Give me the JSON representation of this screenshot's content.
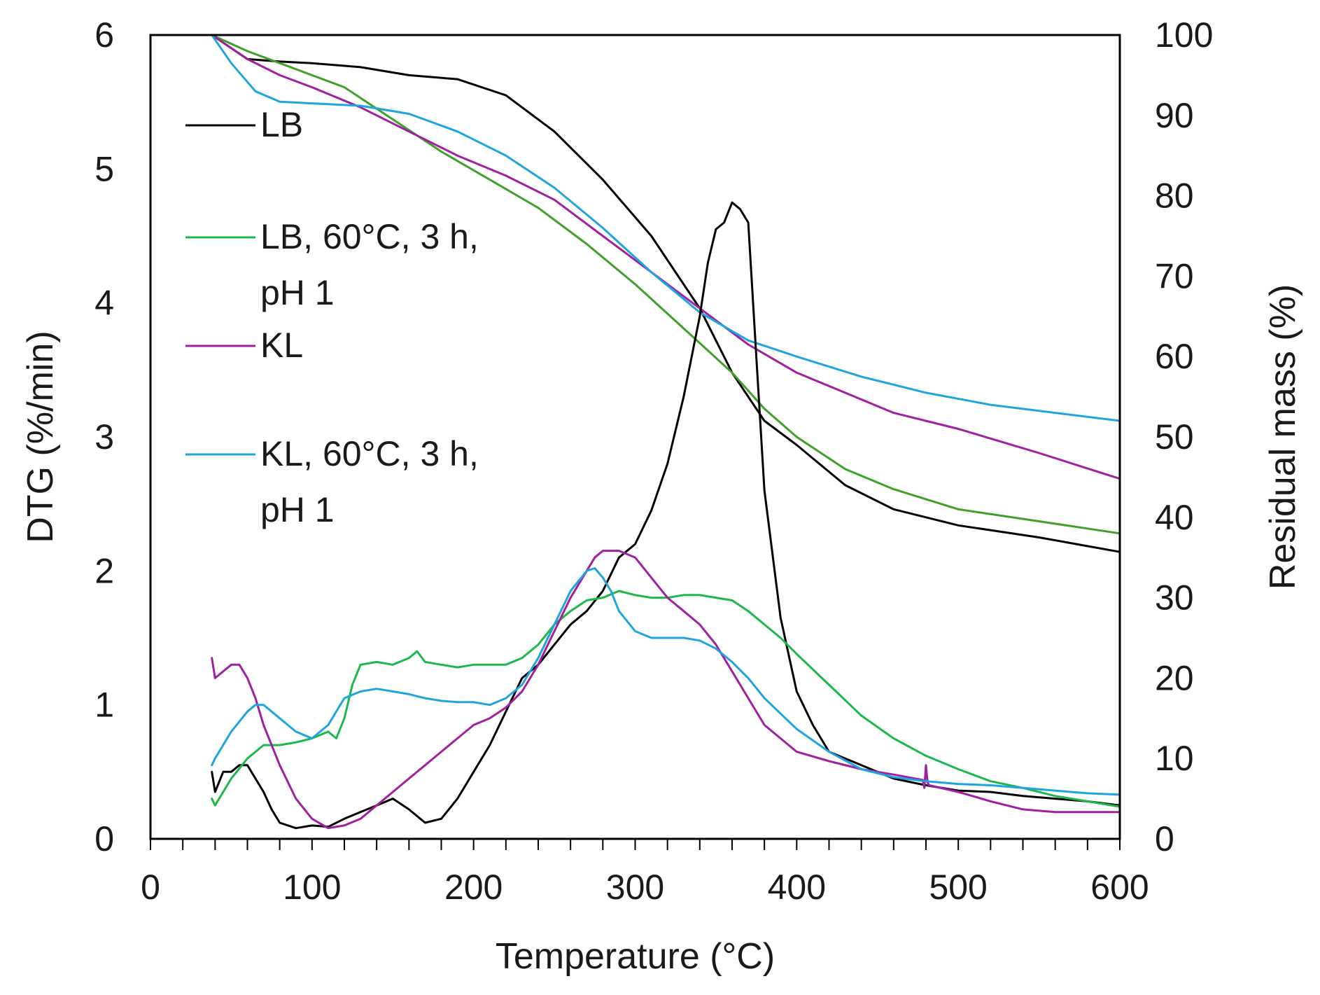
{
  "chart_data": {
    "type": "line",
    "xlabel": "Temperature (°C)",
    "ylabel_left": "DTG (%/min)",
    "ylabel_right": "Residual mass (%)",
    "xlim": [
      0,
      600
    ],
    "ylim_left": [
      0,
      6
    ],
    "ylim_right": [
      0,
      100
    ],
    "x_ticks": [
      "0",
      "100",
      "200",
      "300",
      "400",
      "500",
      "600"
    ],
    "y_left_ticks": [
      "0",
      "1",
      "2",
      "3",
      "4",
      "5",
      "6"
    ],
    "y_right_ticks": [
      "0",
      "10",
      "20",
      "30",
      "40",
      "50",
      "60",
      "70",
      "80",
      "90",
      "100"
    ],
    "grid": false,
    "legend_position": "upper-left inside",
    "legend": [
      {
        "series": "LB",
        "lines": [
          "LB"
        ],
        "color": "#000000"
      },
      {
        "series": "LB, 60°C, 3 h, pH 1",
        "lines": [
          "LB, 60°C, 3 h,",
          "pH 1"
        ],
        "color": "#1db84a"
      },
      {
        "series": "KL",
        "lines": [
          "KL"
        ],
        "color": "#a020a0"
      },
      {
        "series": "KL, 60°C, 3 h, pH 1",
        "lines": [
          "KL, 60°C, 3 h,",
          "pH 1"
        ],
        "color": "#1ea5e0"
      }
    ],
    "series": [
      {
        "name": "LB",
        "axis": "right",
        "kind": "residual mass",
        "color": "#000000",
        "x": [
          38,
          60,
          80,
          100,
          130,
          160,
          190,
          220,
          250,
          280,
          310,
          340,
          360,
          380,
          400,
          430,
          460,
          500,
          550,
          600
        ],
        "y": [
          100,
          97,
          96.7,
          96.5,
          96,
          95,
          94.5,
          92.5,
          88,
          82,
          75,
          66,
          58,
          52,
          49,
          44,
          41,
          39,
          37.5,
          35.7
        ]
      },
      {
        "name": "LB, 60°C, 3 h, pH 1",
        "axis": "right",
        "kind": "residual mass",
        "color": "#3fa02a",
        "x": [
          38,
          60,
          80,
          100,
          120,
          150,
          180,
          210,
          240,
          270,
          300,
          330,
          360,
          380,
          400,
          430,
          460,
          500,
          550,
          600
        ],
        "y": [
          100,
          98,
          96.5,
          95,
          93.5,
          89.5,
          85.5,
          82,
          78.5,
          74,
          69,
          63.5,
          58,
          53.5,
          50,
          46,
          43.5,
          41,
          39.5,
          38
        ]
      },
      {
        "name": "KL",
        "axis": "right",
        "kind": "residual mass",
        "color": "#a020a0",
        "x": [
          38,
          60,
          80,
          100,
          130,
          160,
          190,
          220,
          250,
          280,
          310,
          340,
          370,
          400,
          430,
          460,
          500,
          550,
          600
        ],
        "y": [
          100,
          97,
          95,
          93.5,
          91,
          88,
          85,
          82.5,
          79.5,
          75,
          70.5,
          66,
          61.5,
          58,
          55.5,
          53,
          51,
          48,
          44.8
        ]
      },
      {
        "name": "KL, 60°C, 3 h, pH 1",
        "axis": "right",
        "kind": "residual mass",
        "color": "#1ea5e0",
        "x": [
          38,
          50,
          65,
          80,
          100,
          130,
          160,
          190,
          220,
          250,
          280,
          310,
          340,
          370,
          400,
          440,
          480,
          520,
          560,
          600
        ],
        "y": [
          100,
          96.5,
          93,
          91.7,
          91.5,
          91.2,
          90.2,
          88,
          85,
          81,
          76,
          70.5,
          65.5,
          62,
          60,
          57.5,
          55.5,
          54,
          53,
          52
        ]
      },
      {
        "name": "LB",
        "axis": "left",
        "kind": "DTG",
        "color": "#000000",
        "x": [
          38,
          40,
          45,
          50,
          55,
          60,
          65,
          70,
          75,
          80,
          90,
          100,
          110,
          120,
          130,
          140,
          150,
          160,
          170,
          180,
          190,
          200,
          210,
          220,
          230,
          240,
          250,
          260,
          270,
          280,
          290,
          300,
          310,
          320,
          330,
          340,
          345,
          350,
          355,
          360,
          365,
          370,
          375,
          380,
          390,
          400,
          410,
          420,
          440,
          460,
          480,
          500,
          520,
          540,
          560,
          580,
          600
        ],
        "y": [
          0.5,
          0.35,
          0.5,
          0.5,
          0.55,
          0.55,
          0.45,
          0.35,
          0.22,
          0.12,
          0.08,
          0.1,
          0.09,
          0.15,
          0.2,
          0.25,
          0.3,
          0.22,
          0.12,
          0.15,
          0.3,
          0.5,
          0.7,
          0.95,
          1.2,
          1.3,
          1.45,
          1.6,
          1.7,
          1.85,
          2.1,
          2.2,
          2.45,
          2.8,
          3.3,
          3.9,
          4.3,
          4.55,
          4.6,
          4.75,
          4.7,
          4.6,
          3.6,
          2.6,
          1.65,
          1.1,
          0.85,
          0.65,
          0.55,
          0.45,
          0.4,
          0.36,
          0.35,
          0.32,
          0.3,
          0.28,
          0.25
        ]
      },
      {
        "name": "LB, 60°C, 3 h, pH 1",
        "axis": "left",
        "kind": "DTG",
        "color": "#1db84a",
        "x": [
          38,
          40,
          50,
          60,
          70,
          80,
          90,
          100,
          110,
          115,
          120,
          125,
          130,
          140,
          150,
          160,
          165,
          170,
          180,
          190,
          200,
          210,
          220,
          230,
          240,
          250,
          260,
          270,
          280,
          290,
          300,
          310,
          320,
          330,
          340,
          350,
          360,
          370,
          380,
          390,
          400,
          420,
          440,
          460,
          480,
          500,
          520,
          540,
          560,
          580,
          600
        ],
        "y": [
          0.3,
          0.25,
          0.45,
          0.6,
          0.7,
          0.7,
          0.72,
          0.75,
          0.8,
          0.75,
          0.9,
          1.15,
          1.3,
          1.32,
          1.3,
          1.35,
          1.4,
          1.32,
          1.3,
          1.28,
          1.3,
          1.3,
          1.3,
          1.35,
          1.45,
          1.6,
          1.7,
          1.78,
          1.8,
          1.85,
          1.82,
          1.8,
          1.8,
          1.82,
          1.82,
          1.8,
          1.78,
          1.7,
          1.6,
          1.5,
          1.38,
          1.15,
          0.92,
          0.75,
          0.62,
          0.52,
          0.43,
          0.38,
          0.32,
          0.28,
          0.24
        ]
      },
      {
        "name": "KL",
        "axis": "left",
        "kind": "DTG",
        "color": "#a020a0",
        "x": [
          38,
          40,
          45,
          50,
          55,
          60,
          65,
          70,
          80,
          90,
          100,
          110,
          120,
          130,
          140,
          150,
          160,
          170,
          180,
          190,
          200,
          210,
          220,
          230,
          240,
          250,
          260,
          270,
          275,
          280,
          290,
          300,
          310,
          320,
          330,
          340,
          350,
          360,
          370,
          380,
          400,
          420,
          440,
          460,
          478,
          479,
          480,
          481,
          482,
          500,
          520,
          540,
          560,
          580,
          600
        ],
        "y": [
          1.35,
          1.2,
          1.25,
          1.3,
          1.3,
          1.2,
          1.05,
          0.85,
          0.55,
          0.3,
          0.15,
          0.08,
          0.1,
          0.15,
          0.25,
          0.35,
          0.45,
          0.55,
          0.65,
          0.75,
          0.85,
          0.9,
          0.98,
          1.1,
          1.3,
          1.55,
          1.8,
          2.0,
          2.1,
          2.15,
          2.15,
          2.1,
          1.95,
          1.8,
          1.7,
          1.6,
          1.45,
          1.25,
          1.05,
          0.85,
          0.65,
          0.58,
          0.52,
          0.48,
          0.44,
          0.38,
          0.55,
          0.42,
          0.4,
          0.35,
          0.28,
          0.22,
          0.2,
          0.2,
          0.2
        ]
      },
      {
        "name": "KL, 60°C, 3 h, pH 1",
        "axis": "left",
        "kind": "DTG",
        "color": "#1ea5e0",
        "x": [
          38,
          40,
          50,
          60,
          65,
          70,
          80,
          90,
          100,
          110,
          120,
          130,
          140,
          150,
          160,
          170,
          180,
          190,
          200,
          210,
          220,
          230,
          240,
          250,
          260,
          270,
          275,
          280,
          285,
          290,
          300,
          310,
          320,
          330,
          340,
          350,
          360,
          370,
          380,
          400,
          420,
          440,
          460,
          480,
          500,
          520,
          540,
          560,
          580,
          600
        ],
        "y": [
          0.55,
          0.6,
          0.8,
          0.95,
          1.0,
          1.0,
          0.9,
          0.8,
          0.75,
          0.85,
          1.05,
          1.1,
          1.12,
          1.1,
          1.08,
          1.05,
          1.03,
          1.02,
          1.02,
          1.0,
          1.05,
          1.15,
          1.35,
          1.6,
          1.85,
          2.0,
          2.02,
          1.95,
          1.85,
          1.7,
          1.55,
          1.5,
          1.5,
          1.5,
          1.48,
          1.42,
          1.32,
          1.2,
          1.05,
          0.82,
          0.65,
          0.52,
          0.46,
          0.43,
          0.41,
          0.4,
          0.38,
          0.36,
          0.34,
          0.33
        ]
      }
    ]
  }
}
